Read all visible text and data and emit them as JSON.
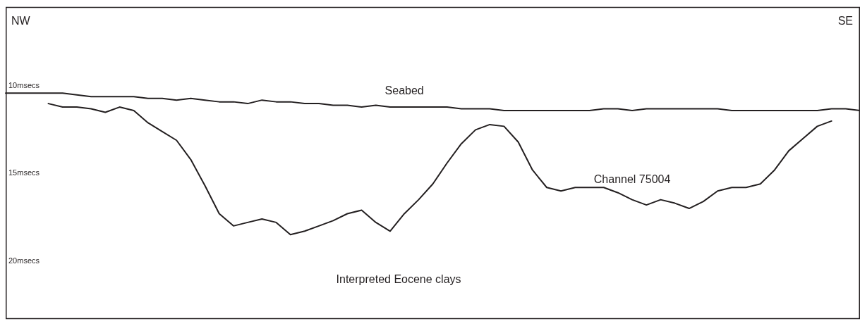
{
  "chart_data": {
    "type": "line",
    "annotations": [
      "NW",
      "SE",
      "Interpreted Eocene clays"
    ],
    "categories": [
      null,
      null,
      null,
      null,
      null,
      null,
      null,
      null,
      null,
      null,
      null,
      null,
      null,
      null,
      null,
      null,
      null,
      null,
      null,
      null,
      null,
      null,
      null,
      null,
      null,
      null,
      null,
      null,
      null,
      null,
      null,
      null,
      null,
      null,
      null,
      null,
      null,
      null,
      null,
      null,
      null,
      null,
      null,
      null,
      null,
      null,
      null,
      null,
      null,
      null,
      null,
      null,
      null,
      null,
      null,
      null,
      null,
      null,
      null,
      null,
      null
    ],
    "series": [
      {
        "name": "Seabed",
        "color": "#231f20",
        "values": [
          10.4,
          10.4,
          10.4,
          10.4,
          10.4,
          10.5,
          10.6,
          10.6,
          10.6,
          10.6,
          10.7,
          10.7,
          10.8,
          10.7,
          10.8,
          10.9,
          10.9,
          11.0,
          10.8,
          10.9,
          10.9,
          11.0,
          11.0,
          11.1,
          11.1,
          11.2,
          11.1,
          11.2,
          11.2,
          11.2,
          11.2,
          11.2,
          11.3,
          11.3,
          11.3,
          11.4,
          11.4,
          11.4,
          11.4,
          11.4,
          11.4,
          11.4,
          11.3,
          11.3,
          11.4,
          11.3,
          11.3,
          11.3,
          11.3,
          11.3,
          11.3,
          11.4,
          11.4,
          11.4,
          11.4,
          11.4,
          11.4,
          11.4,
          11.3,
          11.3,
          11.4
        ]
      },
      {
        "name": "Channel 75004",
        "color": "#231f20",
        "values": [
          null,
          null,
          null,
          11.0,
          11.2,
          11.2,
          11.3,
          11.5,
          11.2,
          11.4,
          12.1,
          12.6,
          13.1,
          14.2,
          15.7,
          17.3,
          18.0,
          17.8,
          17.6,
          17.8,
          18.5,
          18.3,
          18.0,
          17.7,
          17.3,
          17.1,
          17.8,
          18.3,
          17.3,
          16.5,
          15.6,
          14.4,
          13.3,
          12.5,
          12.2,
          12.3,
          13.2,
          14.8,
          15.8,
          16.0,
          15.8,
          15.8,
          15.8,
          16.1,
          16.5,
          16.8,
          16.5,
          16.7,
          17.0,
          16.6,
          16.0,
          15.8,
          15.8,
          15.6,
          14.8,
          13.7,
          13.0,
          12.3,
          12.0,
          null,
          null
        ]
      }
    ],
    "ylim": [
      23.3,
      5.5
    ],
    "yticks": [
      {
        "value": 10,
        "label": "10msecs"
      },
      {
        "value": 15,
        "label": "15msecs"
      },
      {
        "value": 20,
        "label": "20msecs"
      }
    ],
    "tick_labels": "y",
    "grid": false,
    "legend": false,
    "marker": "none",
    "line_style": "solid"
  }
}
